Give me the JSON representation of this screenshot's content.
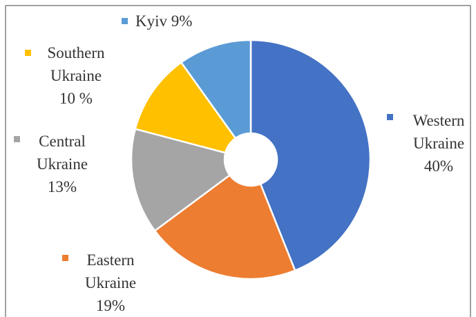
{
  "chart_data": {
    "type": "pie",
    "donut": true,
    "categories": [
      "Western Ukraine",
      "Eastern Ukraine",
      "Central Ukraine",
      "Southern Ukraine",
      "Kyiv"
    ],
    "values": [
      40,
      19,
      13,
      10,
      9
    ],
    "value_labels": [
      "40%",
      "19%",
      "13%",
      "10 %",
      "9%"
    ],
    "colors": [
      "#4472c4",
      "#ed7d31",
      "#a5a5a5",
      "#ffc000",
      "#5b9bd5"
    ]
  }
}
